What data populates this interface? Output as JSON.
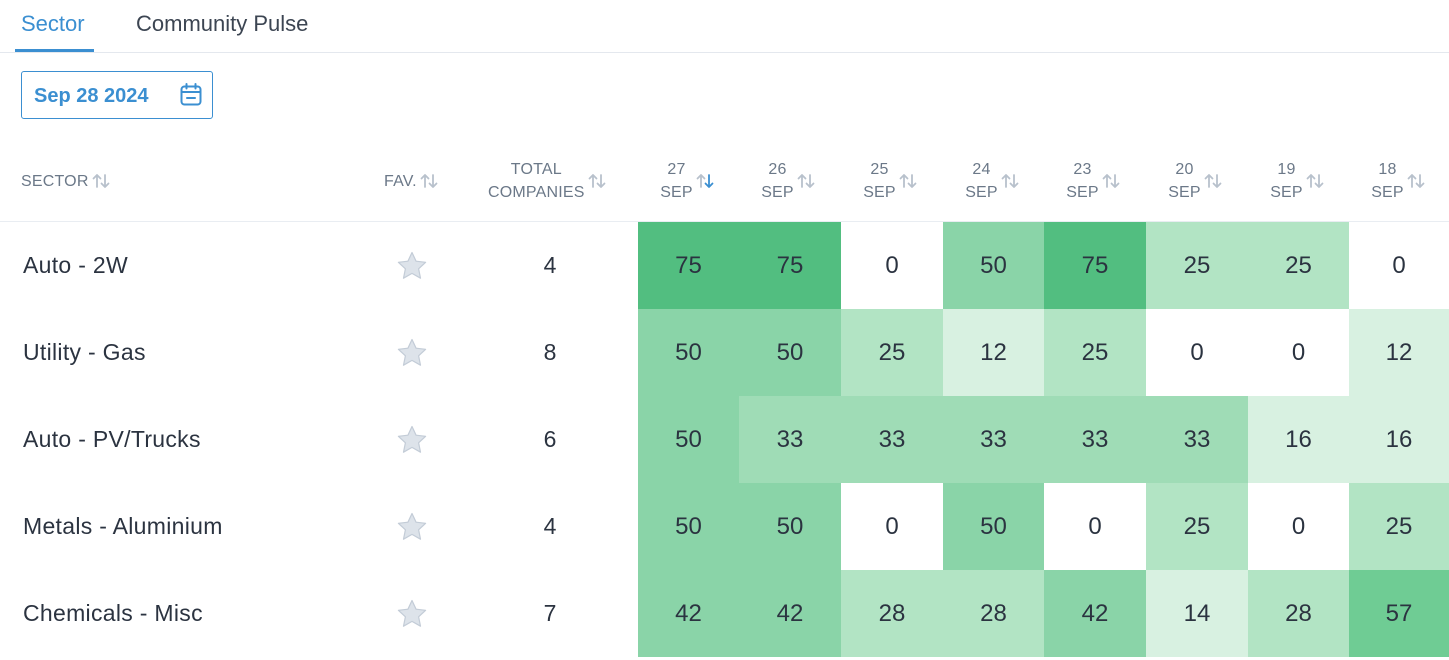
{
  "tabs": [
    {
      "label": "Sector",
      "active": true
    },
    {
      "label": "Community Pulse",
      "active": false
    }
  ],
  "date_picker": {
    "value": "Sep 28 2024",
    "icon": "calendar-icon"
  },
  "columns": {
    "sector": "SECTOR",
    "fav": "FAV.",
    "total_line1": "TOTAL",
    "total_line2": "COMPANIES",
    "dates": [
      {
        "day": "27",
        "month": "SEP",
        "sorted": "desc"
      },
      {
        "day": "26",
        "month": "SEP"
      },
      {
        "day": "25",
        "month": "SEP"
      },
      {
        "day": "24",
        "month": "SEP"
      },
      {
        "day": "23",
        "month": "SEP"
      },
      {
        "day": "20",
        "month": "SEP"
      },
      {
        "day": "19",
        "month": "SEP"
      },
      {
        "day": "18",
        "month": "SEP"
      }
    ]
  },
  "colors": {
    "accent": "#3b8fd1",
    "scale_0": "#ffffff",
    "scale_12": "#d8f1e1",
    "scale_25": "#b2e4c4",
    "scale_33": "#9fdcb6",
    "scale_50": "#8ad4a8",
    "scale_57": "#6fcc94",
    "scale_75": "#52be80"
  },
  "rows": [
    {
      "sector": "Auto - 2W",
      "total": "4",
      "values": [
        "75",
        "75",
        "0",
        "50",
        "75",
        "25",
        "25",
        "0"
      ]
    },
    {
      "sector": "Utility - Gas",
      "total": "8",
      "values": [
        "50",
        "50",
        "25",
        "12",
        "25",
        "0",
        "0",
        "12"
      ]
    },
    {
      "sector": "Auto - PV/Trucks",
      "total": "6",
      "values": [
        "50",
        "33",
        "33",
        "33",
        "33",
        "33",
        "16",
        "16"
      ]
    },
    {
      "sector": "Metals - Aluminium",
      "total": "4",
      "values": [
        "50",
        "50",
        "0",
        "50",
        "0",
        "25",
        "0",
        "25"
      ]
    },
    {
      "sector": "Chemicals - Misc",
      "total": "7",
      "values": [
        "42",
        "42",
        "28",
        "28",
        "42",
        "14",
        "28",
        "57"
      ]
    }
  ]
}
